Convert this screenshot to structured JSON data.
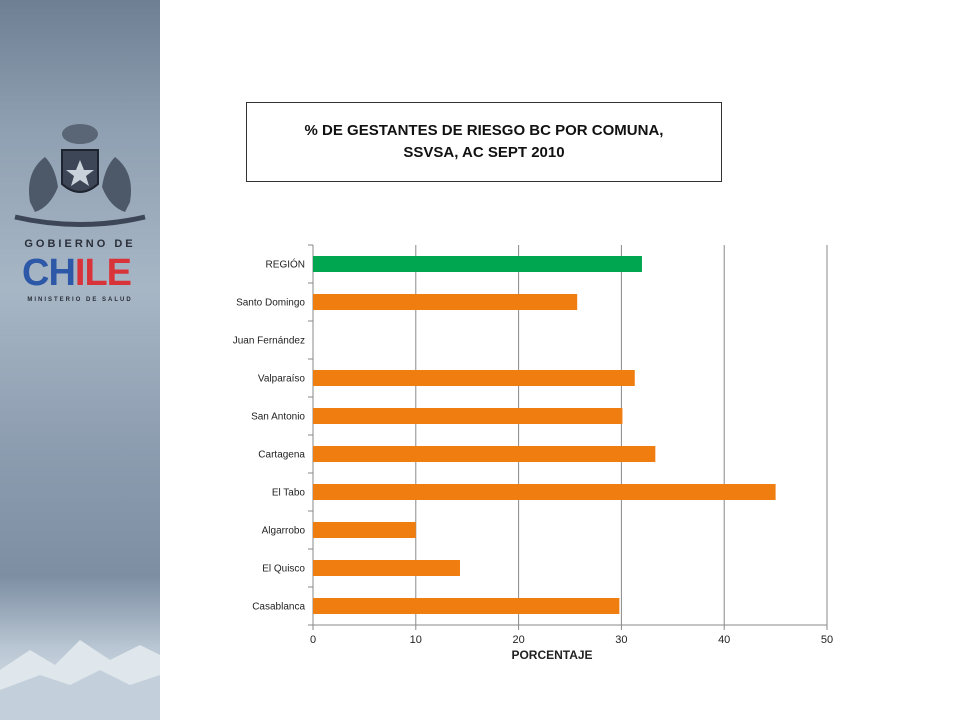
{
  "branding": {
    "gobierno": "GOBIERNO DE",
    "chile_c": "CH",
    "chile_rest": "ILE",
    "ministerio": "MINISTERIO DE SALUD"
  },
  "title": {
    "line1": "% DE GESTANTES DE RIESGO BC POR COMUNA,",
    "line2": "SSVSA, AC SEPT 2010"
  },
  "colors": {
    "region": "#00a650",
    "comuna": "#f07d10"
  },
  "chart_data": {
    "type": "bar",
    "orientation": "horizontal",
    "categories": [
      "REGIÓN",
      "Santo Domingo",
      "Juan Fernández",
      "Valparaíso",
      "San Antonio",
      "Cartagena",
      "El Tabo",
      "Algarrobo",
      "El Quisco",
      "Casablanca"
    ],
    "values": [
      32.0,
      25.7,
      0,
      31.3,
      30.1,
      33.3,
      45.0,
      10.0,
      14.3,
      29.8
    ],
    "highlight": "REGIÓN",
    "xlabel": "PORCENTAJE",
    "xlim": [
      0,
      50
    ],
    "xticks": [
      "0",
      "10",
      "20",
      "30",
      "40",
      "50"
    ],
    "grid": "vertical"
  }
}
